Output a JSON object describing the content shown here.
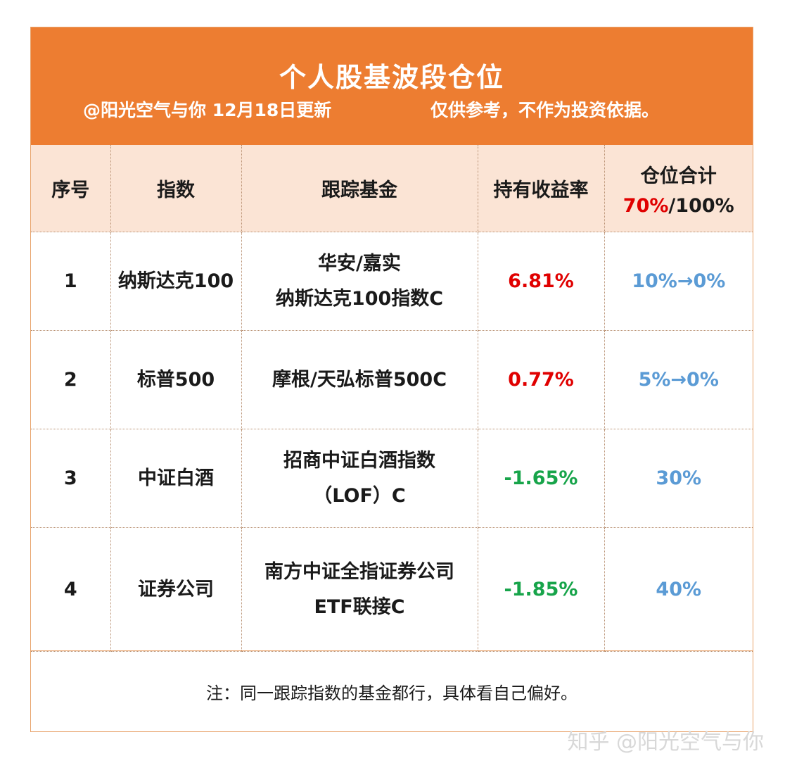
{
  "header": {
    "title": "个人股基波段仓位",
    "subtitle_left": "@阳光空气与你 12月18日更新",
    "subtitle_right": "仅供参考，不作为投资依据。"
  },
  "table": {
    "columns": {
      "index_no": "序号",
      "index": "指数",
      "fund": "跟踪基金",
      "return": "持有收益率",
      "position_title": "仓位合计",
      "position_current": "70%",
      "position_total": "/100%"
    },
    "rows": [
      {
        "no": "1",
        "index": "纳斯达克100",
        "fund_line1": "华安/嘉实",
        "fund_line2": "纳斯达克100指数C",
        "return": "6.81%",
        "return_color": "#e00000",
        "position": "10%→0%"
      },
      {
        "no": "2",
        "index": "标普500",
        "fund_line1": "摩根/天弘标普500C",
        "fund_line2": "",
        "return": "0.77%",
        "return_color": "#e00000",
        "position": "5%→0%"
      },
      {
        "no": "3",
        "index": "中证白酒",
        "fund_line1": "招商中证白酒指数",
        "fund_line2": "（LOF）C",
        "return": "-1.65%",
        "return_color": "#17a44a",
        "position": "30%"
      },
      {
        "no": "4",
        "index": "证券公司",
        "fund_line1": "南方中证全指证券公司",
        "fund_line2": "ETF联接C",
        "return": "-1.85%",
        "return_color": "#17a44a",
        "position": "40%"
      }
    ]
  },
  "note": "注：同一跟踪指数的基金都行，具体看自己偏好。",
  "watermark": "知乎 @阳光空气与你"
}
